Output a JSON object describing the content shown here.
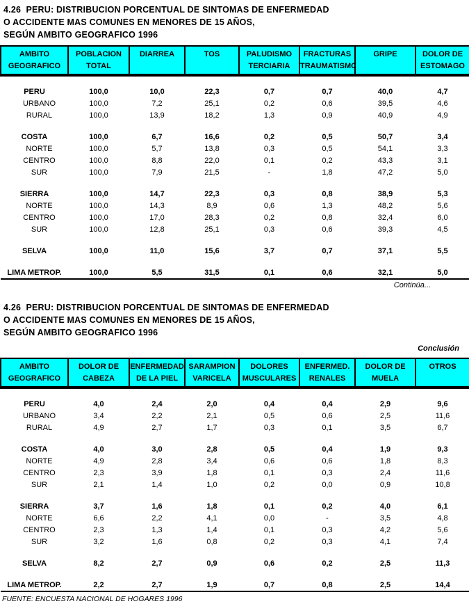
{
  "page": {
    "header_bg": "#00FFFF",
    "text_color": "#000000",
    "title": {
      "line1": "4.26  PERU: DISTRIBUCION PORCENTUAL DE SINTOMAS DE ENFERMEDAD",
      "line2": "O ACCIDENTE MAS COMUNES EN MENORES DE 15 AÑOS,",
      "line3": "SEGÚN AMBITO GEOGRAFICO 1996"
    },
    "continua_label": "Continúa...",
    "conclusion_label": "Conclusión",
    "source": "FUENTE: ENCUESTA NACIONAL DE HOGARES 1996"
  },
  "table1": {
    "columns": [
      {
        "line1": "AMBITO",
        "line2": "GEOGRAFICO"
      },
      {
        "line1": "POBLACION",
        "line2": "TOTAL"
      },
      {
        "line1": "DIARREA",
        "line2": ""
      },
      {
        "line1": "TOS",
        "line2": ""
      },
      {
        "line1": "PALUDISMO",
        "line2": "TERCIARIA"
      },
      {
        "line1": "FRACTURAS",
        "line2": "TRAUMATISMO"
      },
      {
        "line1": "GRIPE",
        "line2": ""
      },
      {
        "line1": "DOLOR DE",
        "line2": "ESTOMAGO"
      }
    ],
    "rows": [
      {
        "label": "PERU",
        "bold": true,
        "indent": false,
        "values": [
          "100,0",
          "10,0",
          "22,3",
          "0,7",
          "0,7",
          "40,0",
          "4,7"
        ]
      },
      {
        "label": "URBANO",
        "bold": false,
        "indent": true,
        "values": [
          "100,0",
          "7,2",
          "25,1",
          "0,2",
          "0,6",
          "39,5",
          "4,6"
        ]
      },
      {
        "label": "RURAL",
        "bold": false,
        "indent": true,
        "values": [
          "100,0",
          "13,9",
          "18,2",
          "1,3",
          "0,9",
          "40,9",
          "4,9"
        ]
      },
      {
        "spacer": true
      },
      {
        "label": "COSTA",
        "bold": true,
        "indent": false,
        "values": [
          "100,0",
          "6,7",
          "16,6",
          "0,2",
          "0,5",
          "50,7",
          "3,4"
        ]
      },
      {
        "label": "NORTE",
        "bold": false,
        "indent": true,
        "values": [
          "100,0",
          "5,7",
          "13,8",
          "0,3",
          "0,5",
          "54,1",
          "3,3"
        ]
      },
      {
        "label": "CENTRO",
        "bold": false,
        "indent": true,
        "values": [
          "100,0",
          "8,8",
          "22,0",
          "0,1",
          "0,2",
          "43,3",
          "3,1"
        ]
      },
      {
        "label": "SUR",
        "bold": false,
        "indent": true,
        "values": [
          "100,0",
          "7,9",
          "21,5",
          "-",
          "1,8",
          "47,2",
          "5,0"
        ]
      },
      {
        "spacer": true
      },
      {
        "label": "SIERRA",
        "bold": true,
        "indent": false,
        "values": [
          "100,0",
          "14,7",
          "22,3",
          "0,3",
          "0,8",
          "38,9",
          "5,3"
        ]
      },
      {
        "label": "NORTE",
        "bold": false,
        "indent": true,
        "values": [
          "100,0",
          "14,3",
          "8,9",
          "0,6",
          "1,3",
          "48,2",
          "5,6"
        ]
      },
      {
        "label": "CENTRO",
        "bold": false,
        "indent": true,
        "values": [
          "100,0",
          "17,0",
          "28,3",
          "0,2",
          "0,8",
          "32,4",
          "6,0"
        ]
      },
      {
        "label": "SUR",
        "bold": false,
        "indent": true,
        "values": [
          "100,0",
          "12,8",
          "25,1",
          "0,3",
          "0,6",
          "39,3",
          "4,5"
        ]
      },
      {
        "spacer": true
      },
      {
        "label": "SELVA",
        "bold": true,
        "indent": false,
        "values": [
          "100,0",
          "11,0",
          "15,6",
          "3,7",
          "0,7",
          "37,1",
          "5,5"
        ]
      },
      {
        "spacer": true
      },
      {
        "label": "LIMA METROP.",
        "bold": true,
        "indent": false,
        "values": [
          "100,0",
          "5,5",
          "31,5",
          "0,1",
          "0,6",
          "32,1",
          "5,0"
        ]
      }
    ]
  },
  "table2": {
    "columns": [
      {
        "line1": "AMBITO",
        "line2": "GEOGRAFICO"
      },
      {
        "line1": "DOLOR DE",
        "line2": "CABEZA"
      },
      {
        "line1": "ENFERMEDAD",
        "line2": "DE LA PIEL"
      },
      {
        "line1": "SARAMPION",
        "line2": "VARICELA"
      },
      {
        "line1": "DOLORES",
        "line2": "MUSCULARES"
      },
      {
        "line1": "ENFERMED.",
        "line2": "RENALES"
      },
      {
        "line1": "DOLOR DE",
        "line2": "MUELA"
      },
      {
        "line1": "OTROS",
        "line2": ""
      }
    ],
    "rows": [
      {
        "label": "PERU",
        "bold": true,
        "indent": false,
        "values": [
          "4,0",
          "2,4",
          "2,0",
          "0,4",
          "0,4",
          "2,9",
          "9,6"
        ]
      },
      {
        "label": "URBANO",
        "bold": false,
        "indent": true,
        "values": [
          "3,4",
          "2,2",
          "2,1",
          "0,5",
          "0,6",
          "2,5",
          "11,6"
        ]
      },
      {
        "label": "RURAL",
        "bold": false,
        "indent": true,
        "values": [
          "4,9",
          "2,7",
          "1,7",
          "0,3",
          "0,1",
          "3,5",
          "6,7"
        ]
      },
      {
        "spacer": true
      },
      {
        "label": "COSTA",
        "bold": true,
        "indent": false,
        "values": [
          "4,0",
          "3,0",
          "2,8",
          "0,5",
          "0,4",
          "1,9",
          "9,3"
        ]
      },
      {
        "label": "NORTE",
        "bold": false,
        "indent": true,
        "values": [
          "4,9",
          "2,8",
          "3,4",
          "0,6",
          "0,6",
          "1,8",
          "8,3"
        ]
      },
      {
        "label": "CENTRO",
        "bold": false,
        "indent": true,
        "values": [
          "2,3",
          "3,9",
          "1,8",
          "0,1",
          "0,3",
          "2,4",
          "11,6"
        ]
      },
      {
        "label": "SUR",
        "bold": false,
        "indent": true,
        "values": [
          "2,1",
          "1,4",
          "1,0",
          "0,2",
          "0,0",
          "0,9",
          "10,8"
        ]
      },
      {
        "spacer": true
      },
      {
        "label": "SIERRA",
        "bold": true,
        "indent": false,
        "values": [
          "3,7",
          "1,6",
          "1,8",
          "0,1",
          "0,2",
          "4,0",
          "6,1"
        ]
      },
      {
        "label": "NORTE",
        "bold": false,
        "indent": true,
        "values": [
          "6,6",
          "2,2",
          "4,1",
          "0,0",
          "-",
          "3,5",
          "4,8"
        ]
      },
      {
        "label": "CENTRO",
        "bold": false,
        "indent": true,
        "values": [
          "2,3",
          "1,3",
          "1,4",
          "0,1",
          "0,3",
          "4,2",
          "5,6"
        ]
      },
      {
        "label": "SUR",
        "bold": false,
        "indent": true,
        "values": [
          "3,2",
          "1,6",
          "0,8",
          "0,2",
          "0,3",
          "4,1",
          "7,4"
        ]
      },
      {
        "spacer": true
      },
      {
        "label": "SELVA",
        "bold": true,
        "indent": false,
        "values": [
          "8,2",
          "2,7",
          "0,9",
          "0,6",
          "0,2",
          "2,5",
          "11,3"
        ]
      },
      {
        "spacer": true
      },
      {
        "label": "LIMA METROP.",
        "bold": true,
        "indent": false,
        "values": [
          "2,2",
          "2,7",
          "1,9",
          "0,7",
          "0,8",
          "2,5",
          "14,4"
        ]
      }
    ]
  }
}
